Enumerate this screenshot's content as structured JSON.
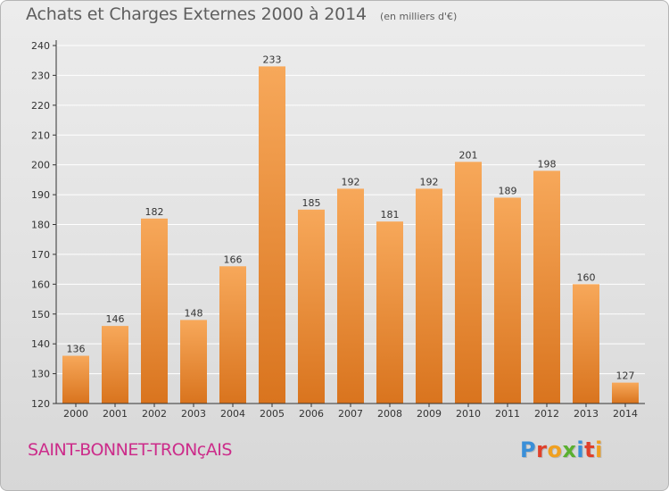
{
  "header": {
    "title": "Achats et Charges Externes 2000 à 2014",
    "subtitle": "(en milliers d'€)"
  },
  "footer": {
    "commune": "SAINT-BONNET-TRONçAIS",
    "logo": "Proxiti",
    "logo_colors": [
      "#3a8fd8",
      "#e0402a",
      "#f0a020",
      "#5ab030",
      "#3a8fd8",
      "#e0402a",
      "#f0a020"
    ]
  },
  "colors": {
    "bar_light": "#f7a85a",
    "bar_dark": "#d9741e",
    "axis": "#333333",
    "grid": "#ffffff"
  },
  "chart_data": {
    "type": "bar",
    "categories": [
      "2000",
      "2001",
      "2002",
      "2003",
      "2004",
      "2005",
      "2006",
      "2007",
      "2008",
      "2009",
      "2010",
      "2011",
      "2012",
      "2013",
      "2014"
    ],
    "values": [
      136,
      146,
      182,
      148,
      166,
      233,
      185,
      192,
      181,
      192,
      201,
      189,
      198,
      160,
      127
    ],
    "title": "Achats et Charges Externes 2000 à 2014",
    "subtitle": "(en milliers d'€)",
    "xlabel": "",
    "ylabel": "",
    "ylim": [
      120,
      240
    ],
    "yticks": [
      120,
      130,
      140,
      150,
      160,
      170,
      180,
      190,
      200,
      210,
      220,
      230,
      240
    ],
    "grid": true,
    "legend": "none"
  }
}
